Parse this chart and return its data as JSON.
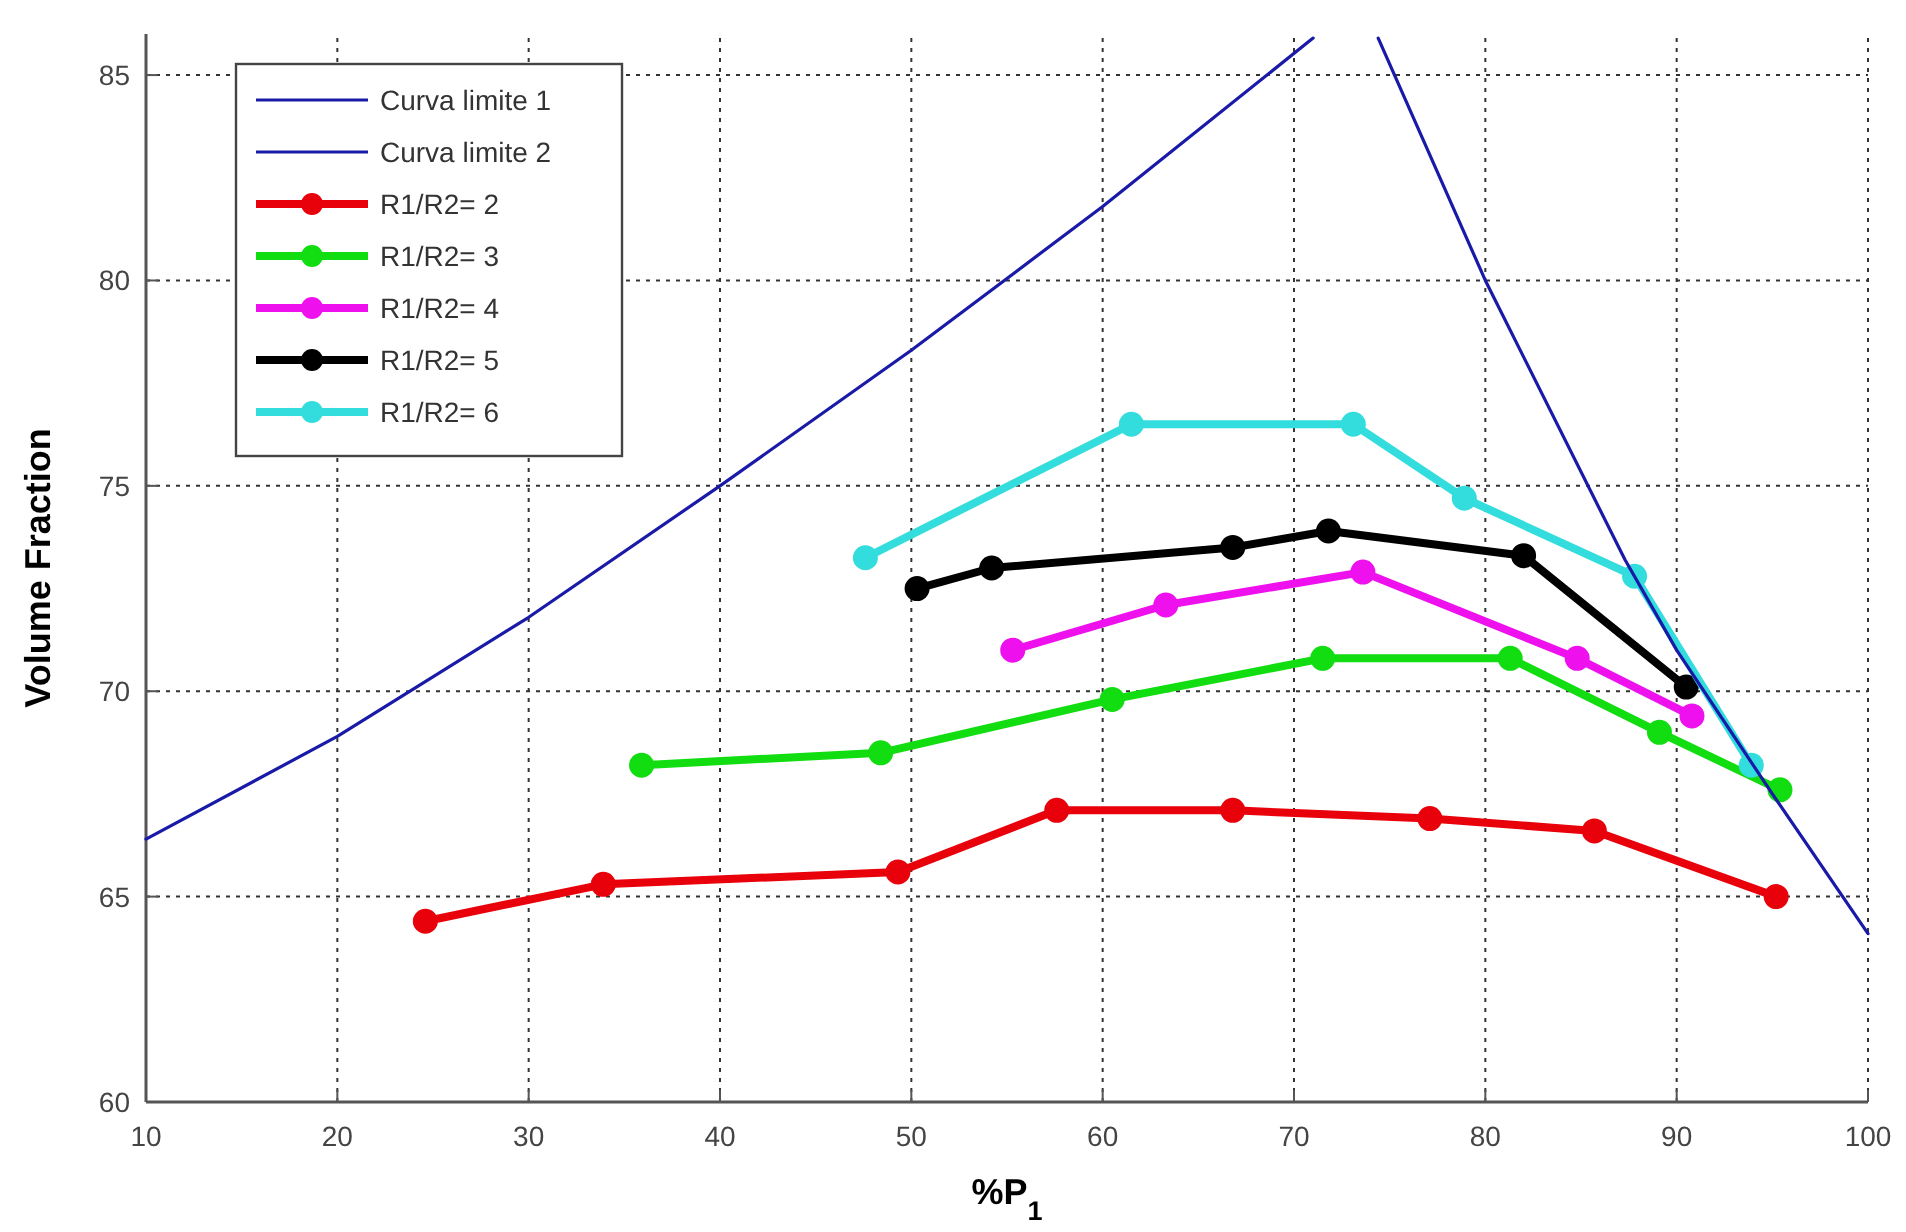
{
  "chart_data": {
    "type": "line",
    "xlabel": "%P$_{1}$",
    "ylabel": "Volume Fraction",
    "xlim": [
      10,
      100
    ],
    "ylim": [
      60,
      86
    ],
    "xticks": [
      10,
      20,
      30,
      40,
      50,
      60,
      70,
      80,
      90,
      100
    ],
    "yticks": [
      60,
      65,
      70,
      75,
      80,
      85
    ],
    "grid": true,
    "legend": "top left",
    "series": [
      {
        "name": "Curva limite 1",
        "color": "#1a1aa8",
        "marker": "none",
        "x": [
          10,
          20,
          30,
          40,
          50,
          60,
          71
        ],
        "values": [
          66.4,
          68.9,
          71.8,
          75,
          78.3,
          81.8,
          85.9
        ]
      },
      {
        "name": "Curva limite 2",
        "color": "#1a1aa8",
        "marker": "none",
        "x": [
          74.4,
          80,
          87.3,
          90,
          95,
          100
        ],
        "values": [
          85.9,
          80,
          73.2,
          71,
          67.5,
          64.1
        ]
      },
      {
        "name": "R1/R2= 2",
        "color": "#e8000b",
        "marker": "circle",
        "x": [
          24.6,
          33.9,
          49.3,
          57.6,
          66.8,
          77.1,
          85.7,
          95.2
        ],
        "values": [
          64.4,
          65.3,
          65.6,
          67.1,
          67.1,
          66.9,
          66.6,
          65.0
        ]
      },
      {
        "name": "R1/R2= 3",
        "color": "#11dd11",
        "marker": "circle",
        "x": [
          35.9,
          48.4,
          60.5,
          71.5,
          81.3,
          89.1,
          95.4
        ],
        "values": [
          68.2,
          68.5,
          69.8,
          70.8,
          70.8,
          69.0,
          67.6
        ]
      },
      {
        "name": "R1/R2= 4",
        "color": "#ee11ee",
        "marker": "circle",
        "x": [
          55.3,
          63.3,
          73.6,
          84.8,
          90.8
        ],
        "values": [
          71.0,
          72.1,
          72.9,
          70.8,
          69.4
        ]
      },
      {
        "name": "R1/R2= 5",
        "color": "#000000",
        "marker": "circle",
        "x": [
          50.3,
          54.2,
          66.8,
          71.8,
          82.0,
          90.5
        ],
        "values": [
          72.5,
          73.0,
          73.5,
          73.9,
          73.3,
          70.1
        ]
      },
      {
        "name": "R1/R2= 6",
        "color": "#33dddd",
        "marker": "circle",
        "x": [
          47.6,
          61.5,
          73.1,
          78.9,
          87.8,
          93.9
        ],
        "values": [
          73.25,
          76.5,
          76.5,
          74.7,
          72.8,
          68.2
        ]
      }
    ]
  }
}
